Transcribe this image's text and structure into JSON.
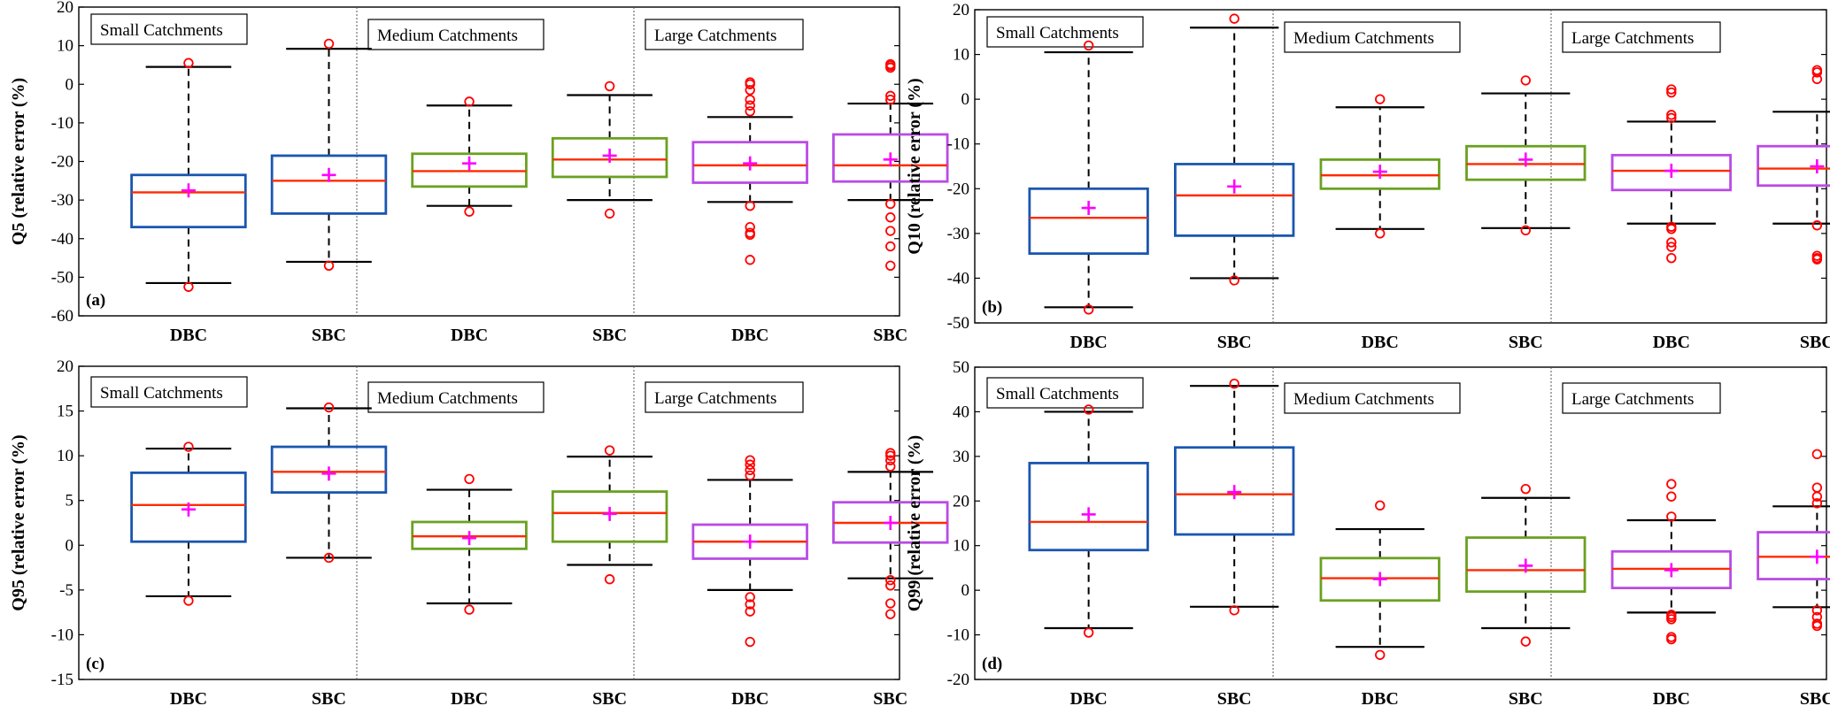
{
  "figure": {
    "group_box_color": "#000000",
    "mean_marker": "+"
  },
  "colors": {
    "small": "#1a56b0",
    "medium": "#6aa121",
    "large": "#b94be6",
    "median": "#ff2a00",
    "mean": "#ff00ff",
    "outlier": "#ff0000",
    "whisker": "#000000",
    "separator": "#555555"
  },
  "chart_data": [
    {
      "type": "box",
      "panel_label": "(a)",
      "ylabel": "Q5 (relative error (%)",
      "ylim": [
        -60,
        20
      ],
      "yticks": [
        20,
        10,
        0,
        -10,
        -20,
        -30,
        -40,
        -50,
        -60
      ],
      "categories": [
        "DBC",
        "SBC",
        "DBC",
        "SBC",
        "DBC",
        "SBC"
      ],
      "groups": [
        "Small Catchments",
        "Medium Catchments",
        "Large Catchments"
      ],
      "boxes": [
        {
          "group": "small",
          "q1": -37,
          "median": -28,
          "q3": -23.5,
          "mean": -27.5,
          "whisker_low": -51.5,
          "whisker_high": 4.5,
          "outliers": [
            -52.5,
            5.5
          ]
        },
        {
          "group": "small",
          "q1": -33.5,
          "median": -25,
          "q3": -18.5,
          "mean": -23.5,
          "whisker_low": -46,
          "whisker_high": 9.2,
          "outliers": [
            -47,
            10.5
          ]
        },
        {
          "group": "medium",
          "q1": -26.5,
          "median": -22.5,
          "q3": -18,
          "mean": -20.5,
          "whisker_low": -31.5,
          "whisker_high": -5.5,
          "outliers": [
            -33,
            -4.5
          ]
        },
        {
          "group": "medium",
          "q1": -24,
          "median": -19.5,
          "q3": -14,
          "mean": -18.5,
          "whisker_low": -30,
          "whisker_high": -2.8,
          "outliers": [
            -33.5,
            -0.5
          ]
        },
        {
          "group": "large",
          "q1": -25.5,
          "median": -21,
          "q3": -15,
          "mean": -20.5,
          "whisker_low": -30.5,
          "whisker_high": -8.5,
          "outliers": [
            -31.5,
            -37,
            -38.5,
            -39,
            -45.5,
            -7,
            -5.5,
            -4,
            -1.5,
            0,
            0.5
          ]
        },
        {
          "group": "large",
          "q1": -25.2,
          "median": -21,
          "q3": -13,
          "mean": -19.5,
          "whisker_low": -30,
          "whisker_high": -5,
          "outliers": [
            -31,
            -34.5,
            -38,
            -42,
            -47,
            -4,
            -3,
            4.3,
            4.8,
            5.2
          ]
        }
      ]
    },
    {
      "type": "box",
      "panel_label": "(b)",
      "ylabel": "Q10 (relative error (%)",
      "ylim": [
        -50,
        20
      ],
      "yticks": [
        20,
        10,
        0,
        -10,
        -20,
        -30,
        -40,
        -50
      ],
      "categories": [
        "DBC",
        "SBC",
        "DBC",
        "SBC",
        "DBC",
        "SBC"
      ],
      "groups": [
        "Small Catchments",
        "Medium Catchments",
        "Large Catchments"
      ],
      "boxes": [
        {
          "group": "small",
          "q1": -34.5,
          "median": -26.5,
          "q3": -20,
          "mean": -24.3,
          "whisker_low": -46.5,
          "whisker_high": 10.5,
          "outliers": [
            -47,
            12
          ]
        },
        {
          "group": "small",
          "q1": -30.5,
          "median": -21.5,
          "q3": -14.5,
          "mean": -19.5,
          "whisker_low": -40,
          "whisker_high": 16,
          "outliers": [
            -40.5,
            18
          ]
        },
        {
          "group": "medium",
          "q1": -20,
          "median": -17,
          "q3": -13.5,
          "mean": -16.2,
          "whisker_low": -29,
          "whisker_high": -1.8,
          "outliers": [
            -30,
            0
          ]
        },
        {
          "group": "medium",
          "q1": -18,
          "median": -14.5,
          "q3": -10.5,
          "mean": -13.5,
          "whisker_low": -28.8,
          "whisker_high": 1.3,
          "outliers": [
            -29.3,
            4.2
          ]
        },
        {
          "group": "large",
          "q1": -20.3,
          "median": -16,
          "q3": -12.5,
          "mean": -16,
          "whisker_low": -27.8,
          "whisker_high": -5,
          "outliers": [
            -28.5,
            -29,
            -32,
            -33,
            -35.5,
            -4.2,
            -3.5,
            1.5,
            2.2
          ]
        },
        {
          "group": "large",
          "q1": -19.3,
          "median": -15.5,
          "q3": -10.5,
          "mean": -15,
          "whisker_low": -27.8,
          "whisker_high": -2.8,
          "outliers": [
            -28.2,
            -35,
            -35.5,
            -35.8,
            4.5,
            6,
            6.5
          ]
        }
      ]
    },
    {
      "type": "box",
      "panel_label": "(c)",
      "ylabel": "Q95 (relative error (%)",
      "ylim": [
        -15,
        20
      ],
      "yticks": [
        20,
        15,
        10,
        5,
        0,
        -5,
        -10,
        -15
      ],
      "categories": [
        "DBC",
        "SBC",
        "DBC",
        "SBC",
        "DBC",
        "SBC"
      ],
      "groups": [
        "Small Catchments",
        "Medium Catchments",
        "Large Catchments"
      ],
      "boxes": [
        {
          "group": "small",
          "q1": 0.4,
          "median": 4.5,
          "q3": 8.1,
          "mean": 4,
          "whisker_low": -5.7,
          "whisker_high": 10.8,
          "outliers": [
            -6.2,
            11
          ]
        },
        {
          "group": "small",
          "q1": 5.9,
          "median": 8.2,
          "q3": 11,
          "mean": 8,
          "whisker_low": -1.4,
          "whisker_high": 15.3,
          "outliers": [
            -1.4,
            15.4
          ]
        },
        {
          "group": "medium",
          "q1": -0.4,
          "median": 1,
          "q3": 2.6,
          "mean": 0.8,
          "whisker_low": -6.5,
          "whisker_high": 6.2,
          "outliers": [
            -7.2,
            7.4
          ]
        },
        {
          "group": "medium",
          "q1": 0.4,
          "median": 3.6,
          "q3": 6,
          "mean": 3.5,
          "whisker_low": -2.2,
          "whisker_high": 9.9,
          "outliers": [
            -3.8,
            10.6
          ]
        },
        {
          "group": "large",
          "q1": -1.5,
          "median": 0.4,
          "q3": 2.3,
          "mean": 0.4,
          "whisker_low": -5,
          "whisker_high": 7.3,
          "outliers": [
            -5.8,
            -6.6,
            -7.4,
            -10.8,
            7.8,
            8.4,
            9,
            9.5
          ]
        },
        {
          "group": "large",
          "q1": 0.3,
          "median": 2.5,
          "q3": 4.8,
          "mean": 2.5,
          "whisker_low": -3.7,
          "whisker_high": 8.2,
          "outliers": [
            -3.9,
            -4.5,
            -6.5,
            -7.7,
            8.8,
            9.5,
            10,
            10.3
          ]
        }
      ]
    },
    {
      "type": "box",
      "panel_label": "(d)",
      "ylabel": "Q99 (relative error (%)",
      "ylim": [
        -20,
        50
      ],
      "yticks": [
        50,
        40,
        30,
        20,
        10,
        0,
        -10,
        -20
      ],
      "categories": [
        "DBC",
        "SBC",
        "DBC",
        "SBC",
        "DBC",
        "SBC"
      ],
      "groups": [
        "Small Catchments",
        "Medium Catchments",
        "Large Catchments"
      ],
      "boxes": [
        {
          "group": "small",
          "q1": 9,
          "median": 15.3,
          "q3": 28.5,
          "mean": 17,
          "whisker_low": -8.5,
          "whisker_high": 40,
          "outliers": [
            -9.5,
            40.5
          ]
        },
        {
          "group": "small",
          "q1": 12.5,
          "median": 21.5,
          "q3": 32,
          "mean": 22,
          "whisker_low": -3.7,
          "whisker_high": 45.8,
          "outliers": [
            -4.5,
            46.3
          ]
        },
        {
          "group": "medium",
          "q1": -2.3,
          "median": 2.7,
          "q3": 7.2,
          "mean": 2.5,
          "whisker_low": -12.7,
          "whisker_high": 13.7,
          "outliers": [
            -14.5,
            19
          ]
        },
        {
          "group": "medium",
          "q1": -0.3,
          "median": 4.5,
          "q3": 11.8,
          "mean": 5.5,
          "whisker_low": -8.5,
          "whisker_high": 20.7,
          "outliers": [
            -11.5,
            22.7
          ]
        },
        {
          "group": "large",
          "q1": 0.5,
          "median": 4.8,
          "q3": 8.7,
          "mean": 4.5,
          "whisker_low": -5,
          "whisker_high": 15.7,
          "outliers": [
            -5.5,
            -6,
            -6.5,
            -10.5,
            -11,
            16.5,
            21,
            23.8
          ]
        },
        {
          "group": "large",
          "q1": 2.5,
          "median": 7.5,
          "q3": 13,
          "mean": 7.5,
          "whisker_low": -3.8,
          "whisker_high": 18.8,
          "outliers": [
            -4.5,
            -6,
            -7.5,
            -8,
            19.5,
            21,
            23,
            30.5
          ]
        }
      ]
    }
  ]
}
